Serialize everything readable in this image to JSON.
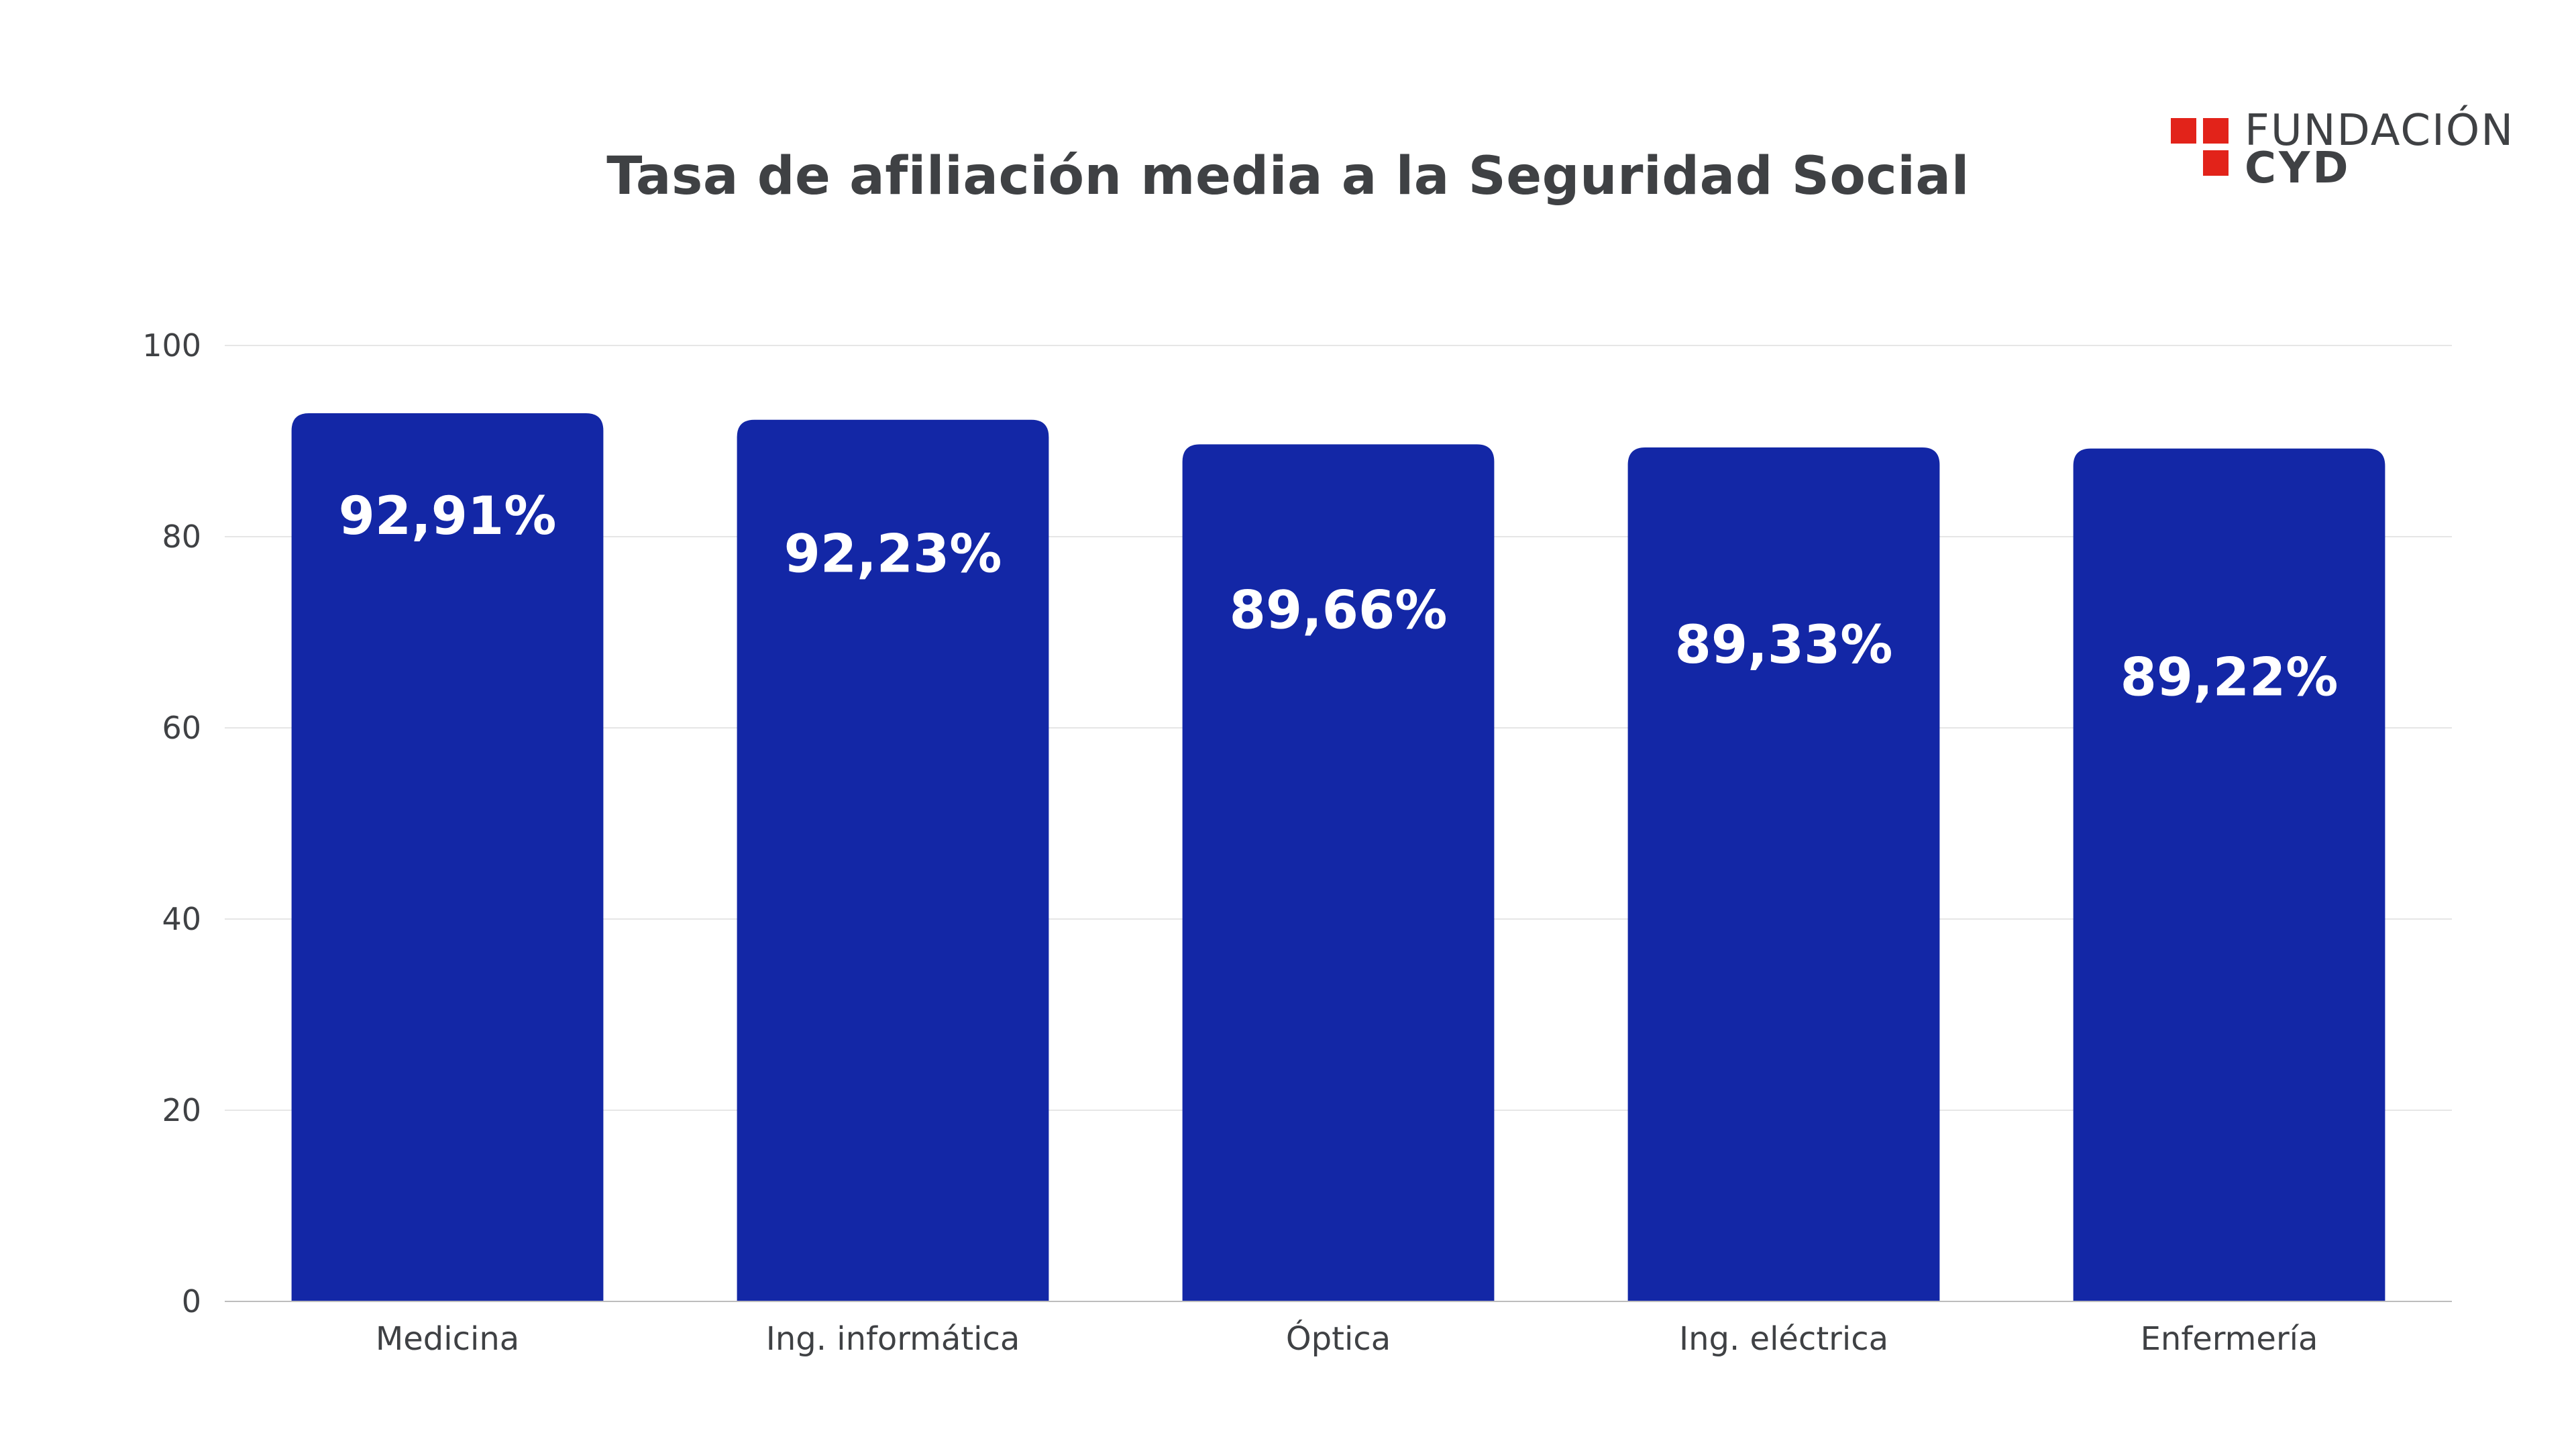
{
  "title": "Tasa de afiliación media a la Seguridad Social",
  "logo": {
    "line1": "FUNDACIÓN",
    "line2": "CYD",
    "accent_color": "#e2231a"
  },
  "colors": {
    "bar": "#1327a6",
    "grid": "#e6e6e6",
    "text": "#3f4144",
    "label": "#ffffff"
  },
  "chart_data": {
    "type": "bar",
    "categories": [
      "Medicina",
      "Ing. informática",
      "Óptica",
      "Ing. eléctrica",
      "Enfermería"
    ],
    "values": [
      92.91,
      92.23,
      89.66,
      89.33,
      89.22
    ],
    "data_labels": [
      "92,91%",
      "92,23%",
      "89,66%",
      "89,33%",
      "89,22%"
    ],
    "yticks": [
      "0",
      "20",
      "40",
      "60",
      "80",
      "100"
    ],
    "ylim": [
      0,
      100
    ],
    "grid": true
  }
}
